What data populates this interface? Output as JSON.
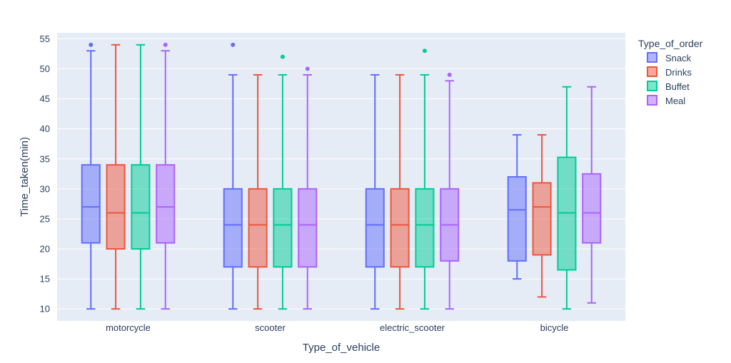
{
  "chart_data": {
    "type": "box",
    "xlabel": "Type_of_vehicle",
    "ylabel": "Time_taken(min)",
    "categories": [
      "motorcycle",
      "scooter",
      "electric_scooter",
      "bicycle"
    ],
    "ylim": [
      8,
      56
    ],
    "yticks": [
      10,
      15,
      20,
      25,
      30,
      35,
      40,
      45,
      50,
      55
    ],
    "grid": true,
    "legend": {
      "title": "Type_of_order",
      "position": "top-right"
    },
    "series": [
      {
        "name": "Snack",
        "color": "#636efa",
        "boxes": [
          {
            "category": "motorcycle",
            "min": 10,
            "q1": 21,
            "median": 27,
            "q3": 34,
            "max": 53,
            "outliers": [
              54
            ]
          },
          {
            "category": "scooter",
            "min": 10,
            "q1": 17,
            "median": 24,
            "q3": 30,
            "max": 49,
            "outliers": [
              54
            ]
          },
          {
            "category": "electric_scooter",
            "min": 10,
            "q1": 17,
            "median": 24,
            "q3": 30,
            "max": 49,
            "outliers": []
          },
          {
            "category": "bicycle",
            "min": 15,
            "q1": 18,
            "median": 26.5,
            "q3": 32,
            "max": 39,
            "outliers": []
          }
        ]
      },
      {
        "name": "Drinks",
        "color": "#ef553b",
        "boxes": [
          {
            "category": "motorcycle",
            "min": 10,
            "q1": 20,
            "median": 26,
            "q3": 34,
            "max": 54,
            "outliers": []
          },
          {
            "category": "scooter",
            "min": 10,
            "q1": 17,
            "median": 24,
            "q3": 30,
            "max": 49,
            "outliers": []
          },
          {
            "category": "electric_scooter",
            "min": 10,
            "q1": 17,
            "median": 24,
            "q3": 30,
            "max": 49,
            "outliers": []
          },
          {
            "category": "bicycle",
            "min": 12,
            "q1": 19,
            "median": 27,
            "q3": 31,
            "max": 39,
            "outliers": []
          }
        ]
      },
      {
        "name": "Buffet",
        "color": "#00cc96",
        "boxes": [
          {
            "category": "motorcycle",
            "min": 10,
            "q1": 20,
            "median": 26,
            "q3": 34,
            "max": 54,
            "outliers": []
          },
          {
            "category": "scooter",
            "min": 10,
            "q1": 17,
            "median": 24,
            "q3": 30,
            "max": 49,
            "outliers": [
              52
            ]
          },
          {
            "category": "electric_scooter",
            "min": 10,
            "q1": 17,
            "median": 24,
            "q3": 30,
            "max": 49,
            "outliers": [
              53
            ]
          },
          {
            "category": "bicycle",
            "min": 10,
            "q1": 16.5,
            "median": 26,
            "q3": 35.25,
            "max": 47,
            "outliers": []
          }
        ]
      },
      {
        "name": "Meal",
        "color": "#ab63fa",
        "boxes": [
          {
            "category": "motorcycle",
            "min": 10,
            "q1": 21,
            "median": 27,
            "q3": 34,
            "max": 53,
            "outliers": [
              54
            ]
          },
          {
            "category": "scooter",
            "min": 10,
            "q1": 17,
            "median": 24,
            "q3": 30,
            "max": 49,
            "outliers": [
              50
            ]
          },
          {
            "category": "electric_scooter",
            "min": 10,
            "q1": 18,
            "median": 24,
            "q3": 30,
            "max": 48,
            "outliers": [
              49
            ]
          },
          {
            "category": "bicycle",
            "min": 11,
            "q1": 21,
            "median": 26,
            "q3": 32.5,
            "max": 47,
            "outliers": []
          }
        ]
      }
    ]
  }
}
